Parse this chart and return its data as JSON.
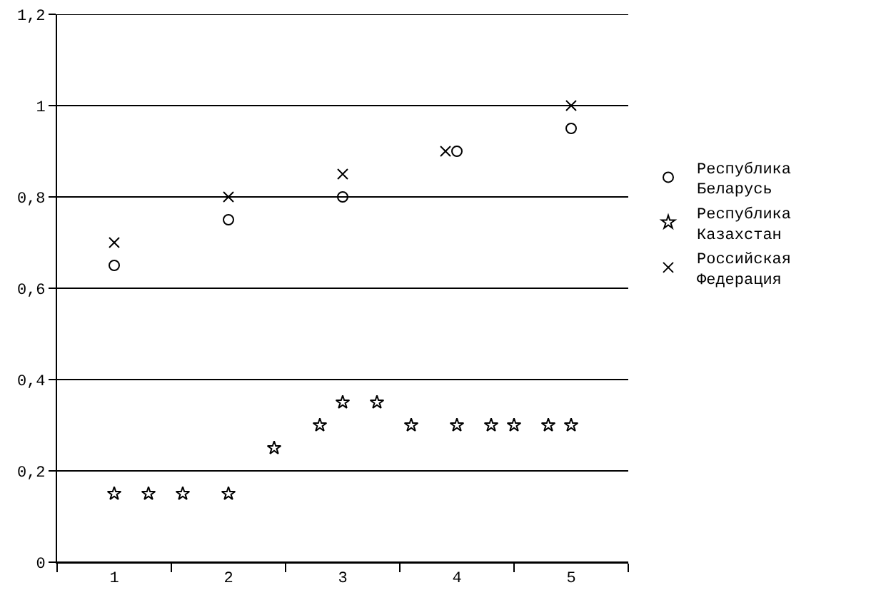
{
  "chart_data": {
    "type": "scatter",
    "xlim": [
      0.5,
      5.5
    ],
    "xticks": [
      1,
      2,
      3,
      4,
      5
    ],
    "ylim": [
      0,
      1.2
    ],
    "yticks": [
      0,
      {
        "value": 0.2,
        "label": "0,2"
      },
      {
        "value": 0.4,
        "label": "0,4"
      },
      {
        "value": 0.6,
        "label": "0,6"
      },
      {
        "value": 0.8,
        "label": "0,8"
      },
      1,
      {
        "value": 1.2,
        "label": "1,2"
      }
    ],
    "grid": "y",
    "legend": "right",
    "series": [
      {
        "name": "Республика Беларусь",
        "color": "#000000",
        "marker": "circle",
        "x": [
          1,
          2,
          3,
          4,
          5
        ],
        "values": [
          0.65,
          0.75,
          0.8,
          0.9,
          0.95
        ]
      },
      {
        "name": "Республика Казахстан",
        "color": "#000000",
        "marker": "star",
        "x": [
          1,
          1.3,
          1.6,
          2,
          2.4,
          2.8,
          3,
          3.3,
          3.6,
          4,
          4.3,
          4.5,
          4.8,
          5
        ],
        "values": [
          0.15,
          0.15,
          0.15,
          0.15,
          0.25,
          0.3,
          0.35,
          0.35,
          0.3,
          0.3,
          0.3,
          0.3,
          0.3,
          0.3
        ]
      },
      {
        "name": "Российская Федерация",
        "color": "#000000",
        "marker": "cross",
        "x": [
          1,
          2,
          3,
          3.9,
          5
        ],
        "values": [
          0.7,
          0.8,
          0.85,
          0.9,
          1
        ]
      }
    ]
  }
}
